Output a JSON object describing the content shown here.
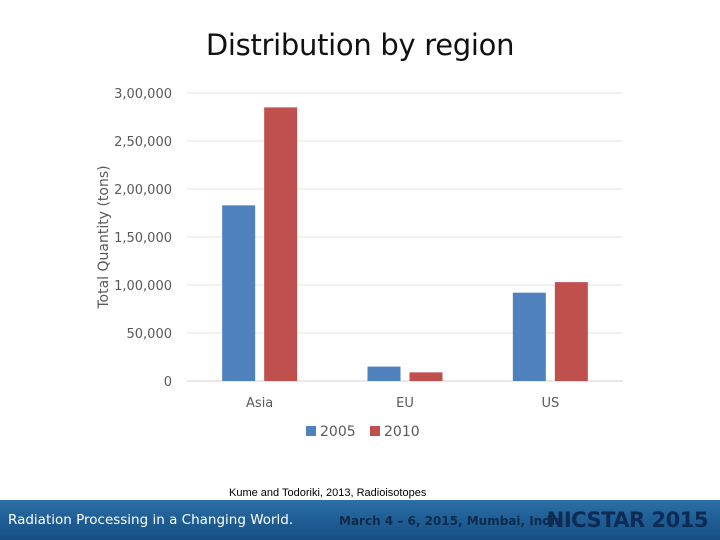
{
  "slide": {
    "title": "Distribution by region",
    "citation": "Kume and Todoriki, 2013, Radioisotopes"
  },
  "footer": {
    "left_text": "Radiation Processing in a Changing World.",
    "middle_text": "March 4 – 6, 2015, Mumbai, India",
    "right_text": "NICSTAR 2015"
  },
  "chart_data": {
    "type": "bar",
    "title": "",
    "xlabel": "",
    "ylabel": "Total Quantity (tons)",
    "categories": [
      "Asia",
      "EU",
      "US"
    ],
    "series": [
      {
        "name": "2005",
        "color": "#4f81bd",
        "values": [
          183000,
          15000,
          92000
        ]
      },
      {
        "name": "2010",
        "color": "#c0504d",
        "values": [
          285000,
          9000,
          103000
        ]
      }
    ],
    "ylim": [
      0,
      300000
    ],
    "yticks": [
      0,
      50000,
      100000,
      150000,
      200000,
      250000,
      300000
    ],
    "ytick_labels": [
      "0",
      "50,000",
      "1,00,000",
      "1,50,000",
      "2,00,000",
      "2,50,000",
      "3,00,000"
    ],
    "grid": true,
    "legend_position": "bottom"
  }
}
